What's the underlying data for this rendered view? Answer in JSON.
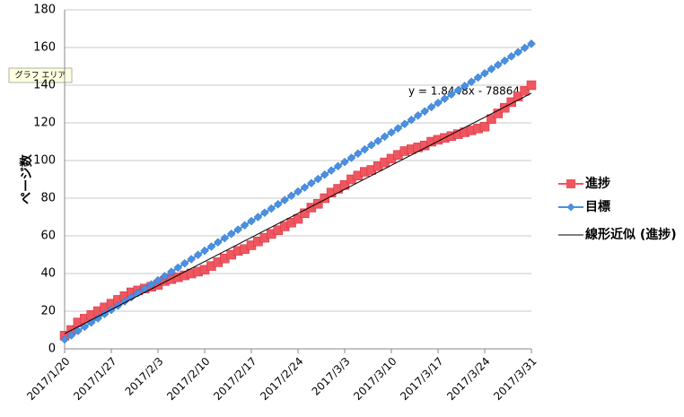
{
  "chart_data": {
    "type": "line",
    "y_label": "ページ数",
    "tooltip": "グラフ エリア",
    "annotation": "y = 1.8448x - 78864",
    "x": [
      "2017/1/20",
      "2017/1/21",
      "2017/1/22",
      "2017/1/23",
      "2017/1/24",
      "2017/1/25",
      "2017/1/26",
      "2017/1/27",
      "2017/1/28",
      "2017/1/29",
      "2017/1/30",
      "2017/1/31",
      "2017/2/1",
      "2017/2/2",
      "2017/2/3",
      "2017/2/4",
      "2017/2/5",
      "2017/2/6",
      "2017/2/7",
      "2017/2/8",
      "2017/2/9",
      "2017/2/10",
      "2017/2/11",
      "2017/2/12",
      "2017/2/13",
      "2017/2/14",
      "2017/2/15",
      "2017/2/16",
      "2017/2/17",
      "2017/2/18",
      "2017/2/19",
      "2017/2/20",
      "2017/2/21",
      "2017/2/22",
      "2017/2/23",
      "2017/2/24",
      "2017/2/25",
      "2017/2/26",
      "2017/2/27",
      "2017/2/28",
      "2017/3/1",
      "2017/3/2",
      "2017/3/3",
      "2017/3/4",
      "2017/3/5",
      "2017/3/6",
      "2017/3/7",
      "2017/3/8",
      "2017/3/9",
      "2017/3/10",
      "2017/3/11",
      "2017/3/12",
      "2017/3/13",
      "2017/3/14",
      "2017/3/15",
      "2017/3/16",
      "2017/3/17",
      "2017/3/18",
      "2017/3/19",
      "2017/3/20",
      "2017/3/21",
      "2017/3/22",
      "2017/3/23",
      "2017/3/24",
      "2017/3/25",
      "2017/3/26",
      "2017/3/27",
      "2017/3/28",
      "2017/3/29",
      "2017/3/30",
      "2017/3/31"
    ],
    "xticks": [
      "2017/1/20",
      "2017/1/27",
      "2017/2/3",
      "2017/2/10",
      "2017/2/17",
      "2017/2/24",
      "2017/3/3",
      "2017/3/10",
      "2017/3/17",
      "2017/3/24",
      "2017/3/31"
    ],
    "series": [
      {
        "name": "進捗",
        "color": "#f0565f",
        "marker": "square",
        "values": [
          7,
          10,
          14,
          16,
          18,
          20,
          22,
          24,
          26,
          28,
          30,
          31,
          32,
          33,
          34,
          36,
          37,
          38,
          39,
          40,
          41,
          42,
          44,
          46,
          48,
          50,
          52,
          53,
          55,
          57,
          59,
          61,
          63,
          65,
          67,
          69,
          72,
          75,
          77,
          80,
          83,
          85,
          87,
          90,
          92,
          94,
          95,
          97,
          99,
          101,
          103,
          105,
          106,
          107,
          108,
          110,
          111,
          112,
          113,
          114,
          115,
          116,
          117,
          118,
          122,
          125,
          128,
          131,
          134,
          137,
          140
        ]
      },
      {
        "name": "目標",
        "color": "#4a90e2",
        "marker": "diamond",
        "values": [
          5,
          7.2,
          9.5,
          11.7,
          14,
          16.2,
          18.5,
          20.7,
          22.9,
          25.2,
          27.4,
          29.7,
          31.9,
          34.2,
          36.4,
          38.6,
          40.9,
          43.1,
          45.4,
          47.6,
          49.9,
          52.1,
          54.3,
          56.6,
          58.8,
          61.1,
          63.3,
          65.6,
          67.8,
          70,
          72.3,
          74.5,
          76.8,
          79,
          81.3,
          83.5,
          85.7,
          88,
          90.2,
          92.5,
          94.7,
          97,
          99.2,
          101.4,
          103.7,
          105.9,
          108.2,
          110.4,
          112.7,
          114.9,
          117.1,
          119.4,
          121.6,
          123.9,
          126.1,
          128.4,
          130.6,
          132.8,
          135.1,
          137.3,
          139.6,
          141.8,
          144.1,
          146.3,
          148.6,
          150.8,
          153,
          155.3,
          157.5,
          159.8,
          162
        ]
      }
    ],
    "trendline": {
      "name": "線形近似 (進捗)",
      "color": "#000000",
      "series": 0
    },
    "ylim": [
      0,
      180
    ],
    "yticks": [
      0,
      20,
      40,
      60,
      80,
      100,
      120,
      140,
      160,
      180
    ],
    "grid": true
  }
}
